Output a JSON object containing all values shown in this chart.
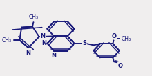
{
  "bg_color": "#f0eeee",
  "line_color": "#1a1a7a",
  "figsize": [
    2.2,
    1.1
  ],
  "dpi": 100,
  "xlim": [
    -0.05,
    1.05
  ],
  "ylim": [
    0.05,
    0.95
  ]
}
